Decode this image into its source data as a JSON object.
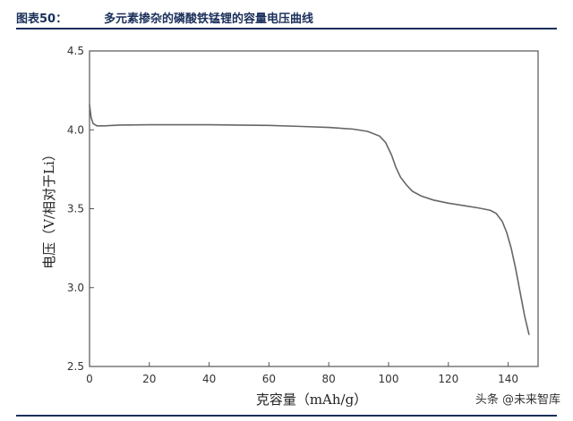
{
  "header": {
    "label": "图表50：",
    "title": "多元素掺杂的磷酸铁锰锂的容量电压曲线"
  },
  "watermark": "头条 @未来智库",
  "chart_data": {
    "type": "line",
    "title": "",
    "xlabel": "克容量（mAh/g）",
    "ylabel": "电压（V/相对于Li）",
    "xlim": [
      0,
      150
    ],
    "ylim": [
      2.5,
      4.5
    ],
    "xticks": [
      0,
      20,
      40,
      60,
      80,
      100,
      120,
      140
    ],
    "yticks": [
      2.5,
      3.0,
      3.5,
      4.0,
      4.5
    ],
    "xtick_labels": [
      "0",
      "20",
      "40",
      "60",
      "80",
      "100",
      "120",
      "140"
    ],
    "ytick_labels": [
      "2.5",
      "3.0",
      "3.5",
      "4.0",
      "4.5"
    ],
    "grid": false,
    "line_color": "#666666",
    "series": [
      {
        "x": [
          0,
          0.5,
          1.2,
          2.5,
          5,
          10,
          20,
          40,
          60,
          70,
          80,
          88,
          93,
          97,
          99,
          101,
          102.5,
          104,
          106,
          108,
          111,
          115,
          120,
          125,
          130,
          134,
          136,
          138,
          139.5,
          141,
          142.5,
          144,
          145.5,
          147
        ],
        "y": [
          4.16,
          4.08,
          4.04,
          4.025,
          4.025,
          4.03,
          4.032,
          4.032,
          4.028,
          4.022,
          4.015,
          4.005,
          3.99,
          3.96,
          3.92,
          3.84,
          3.76,
          3.7,
          3.65,
          3.61,
          3.58,
          3.555,
          3.535,
          3.52,
          3.505,
          3.49,
          3.47,
          3.42,
          3.35,
          3.25,
          3.12,
          2.97,
          2.82,
          2.7
        ]
      }
    ]
  }
}
